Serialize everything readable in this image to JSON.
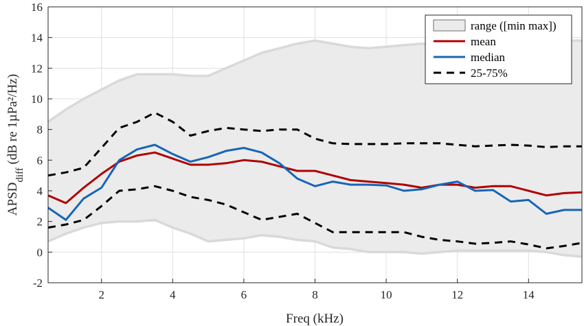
{
  "chart_data": {
    "type": "line",
    "xlabel": "Freq (kHz)",
    "ylabel": {
      "main": "APSD",
      "subscript": "diff",
      "rest": " (dB re 1µPa²/Hz)"
    },
    "xlim": [
      0.5,
      15.5
    ],
    "ylim": [
      -2,
      16
    ],
    "x_ticks": [
      2,
      4,
      6,
      8,
      10,
      12,
      14
    ],
    "y_ticks": [
      -2,
      0,
      2,
      4,
      6,
      8,
      10,
      12,
      14,
      16
    ],
    "grid": true,
    "legend_position": "top-right",
    "x": [
      0.5,
      1,
      1.5,
      2,
      2.5,
      3,
      3.5,
      4,
      4.5,
      5,
      5.5,
      6,
      6.5,
      7,
      7.5,
      8,
      8.5,
      9,
      9.5,
      10,
      10.5,
      11,
      11.5,
      12,
      12.5,
      13,
      13.5,
      14,
      14.5,
      15,
      15.5
    ],
    "range": {
      "name": "range ([min max])",
      "color": "#ebebeb",
      "edge_color": "#d9d9d9",
      "max": [
        8.5,
        9.3,
        10.0,
        10.6,
        11.2,
        11.6,
        11.6,
        11.6,
        11.5,
        11.5,
        12.0,
        12.5,
        13.0,
        13.3,
        13.6,
        13.8,
        13.6,
        13.4,
        13.3,
        13.4,
        13.5,
        13.6,
        13.5,
        13.4,
        13.5,
        13.5,
        13.6,
        13.7,
        13.8,
        13.8,
        13.8
      ],
      "min": [
        0.7,
        1.2,
        1.6,
        1.9,
        2.0,
        2.0,
        2.1,
        1.6,
        1.2,
        0.7,
        0.8,
        0.9,
        1.1,
        1.0,
        0.8,
        0.7,
        0.3,
        0.2,
        0.0,
        0.0,
        0.0,
        -0.1,
        0.0,
        0.1,
        0.1,
        0.1,
        0.1,
        0.1,
        0.0,
        -0.2,
        -0.3
      ]
    },
    "series": [
      {
        "name": "mean",
        "color": "#b00000",
        "values": [
          3.7,
          3.2,
          4.2,
          5.1,
          5.9,
          6.3,
          6.5,
          6.1,
          5.7,
          5.7,
          5.8,
          6.0,
          5.9,
          5.6,
          5.3,
          5.3,
          5.0,
          4.7,
          4.6,
          4.5,
          4.4,
          4.2,
          4.4,
          4.4,
          4.2,
          4.3,
          4.3,
          4.0,
          3.7,
          3.85,
          3.9
        ]
      },
      {
        "name": "median",
        "color": "#1565b8",
        "values": [
          2.9,
          2.1,
          3.5,
          4.2,
          6.0,
          6.7,
          7.0,
          6.4,
          5.9,
          6.2,
          6.6,
          6.8,
          6.5,
          5.8,
          4.8,
          4.3,
          4.6,
          4.4,
          4.4,
          4.35,
          4.0,
          4.1,
          4.4,
          4.6,
          4.0,
          4.05,
          3.3,
          3.4,
          2.5,
          2.75,
          2.75
        ]
      }
    ],
    "quartiles": {
      "name": "25-75%",
      "color": "#000000",
      "q75": [
        5.0,
        5.2,
        5.5,
        6.8,
        8.1,
        8.5,
        9.1,
        8.5,
        7.6,
        7.9,
        8.1,
        8.0,
        7.9,
        8.0,
        8.0,
        7.4,
        7.1,
        7.05,
        7.05,
        7.05,
        7.1,
        7.1,
        7.1,
        7.0,
        6.9,
        6.95,
        7.0,
        6.95,
        6.85,
        6.9,
        6.9
      ],
      "q25": [
        1.6,
        1.8,
        2.1,
        3.0,
        4.0,
        4.1,
        4.3,
        4.0,
        3.6,
        3.4,
        3.1,
        2.6,
        2.1,
        2.3,
        2.5,
        1.9,
        1.3,
        1.3,
        1.3,
        1.3,
        1.3,
        1.0,
        0.8,
        0.7,
        0.55,
        0.6,
        0.7,
        0.5,
        0.25,
        0.4,
        0.6
      ]
    },
    "legend": [
      "range ([min max])",
      "mean",
      "median",
      "25-75%"
    ]
  }
}
